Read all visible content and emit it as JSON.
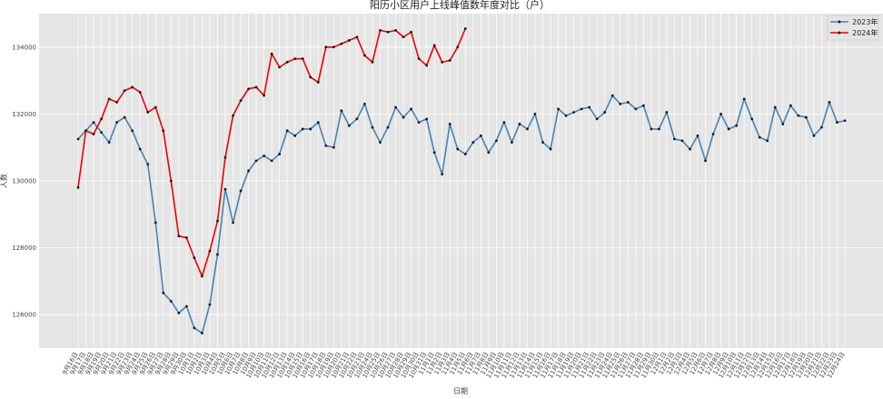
{
  "chart_data": {
    "type": "line",
    "title": "阳历小区用户上线峰值数年度对比（户）",
    "xlabel": "日期",
    "ylabel": "人数",
    "ylim": [
      125000,
      135000
    ],
    "yticks": [
      126000,
      128000,
      130000,
      132000,
      134000
    ],
    "grid": true,
    "legend_position": "top-right",
    "x_start_label": "9月16日",
    "x_end_label": "12月27日",
    "series": [
      {
        "name": "2023年",
        "color": "#4682b4",
        "values": [
          131250,
          131500,
          131750,
          131450,
          131150,
          131750,
          131900,
          131500,
          130950,
          130500,
          128750,
          126650,
          126400,
          126050,
          126250,
          125600,
          125450,
          126300,
          127800,
          129750,
          128750,
          129700,
          130300,
          130600,
          130750,
          130600,
          130800,
          131500,
          131350,
          131550,
          131550,
          131750,
          131050,
          131000,
          132100,
          131650,
          131850,
          132300,
          131600,
          131150,
          131600,
          132200,
          131900,
          132150,
          131750,
          131850,
          130850,
          130200,
          131700,
          130950,
          130800,
          131150,
          131350,
          130850,
          131200,
          131750,
          131150,
          131700,
          131550,
          132000,
          131150,
          130950,
          132150,
          131950,
          132050,
          132150,
          132200,
          131850,
          132050,
          132550,
          132300,
          132350,
          132150,
          132250,
          131550,
          131550,
          132050,
          131250,
          131200,
          130950,
          131350,
          130600,
          131400,
          132000,
          131550,
          131650,
          132450,
          131850,
          131300,
          131200,
          132200,
          131700,
          132250,
          131950,
          131900,
          131350,
          131600,
          132350,
          131750,
          131800
        ]
      },
      {
        "name": "2024年",
        "color": "#ee0000",
        "values": [
          129800,
          131500,
          131400,
          131850,
          132450,
          132350,
          132700,
          132800,
          132650,
          132050,
          132200,
          131500,
          130000,
          128350,
          128300,
          127700,
          127150,
          127900,
          128800,
          130700,
          131950,
          132400,
          132750,
          132800,
          132550,
          133800,
          133400,
          133550,
          133650,
          133650,
          133100,
          132950,
          134000,
          134000,
          134100,
          134200,
          134300,
          133750,
          133550,
          134500,
          134450,
          134500,
          134300,
          134450,
          133650,
          133450,
          134050,
          133550,
          133600,
          134000,
          134550
        ]
      }
    ]
  }
}
